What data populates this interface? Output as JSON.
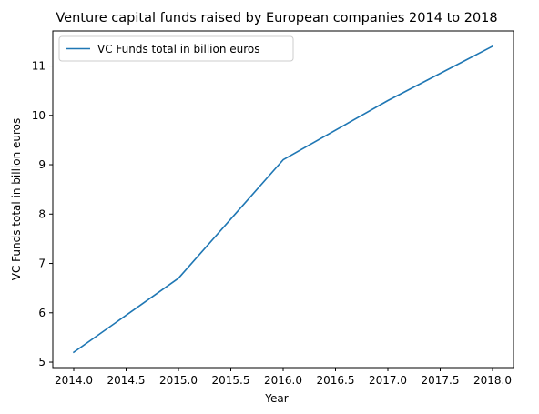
{
  "chart_data": {
    "type": "line",
    "title": "Venture capital funds raised by European companies 2014 to 2018",
    "xlabel": "Year",
    "ylabel": "VC Funds total in billion euros",
    "x": [
      2014,
      2015,
      2016,
      2017,
      2018
    ],
    "series": [
      {
        "name": "VC Funds total in billion euros",
        "values": [
          5.2,
          6.7,
          9.1,
          10.3,
          11.4
        ],
        "color": "#1f77b4"
      }
    ],
    "xticks": [
      "2014.0",
      "2014.5",
      "2015.0",
      "2015.5",
      "2016.0",
      "2016.5",
      "2017.0",
      "2017.5",
      "2018.0"
    ],
    "yticks": [
      "5",
      "6",
      "7",
      "8",
      "9",
      "10",
      "11"
    ],
    "xlim": [
      2013.8,
      2018.2
    ],
    "ylim": [
      4.89,
      11.71
    ],
    "grid": false,
    "legend_position": "upper-left"
  }
}
